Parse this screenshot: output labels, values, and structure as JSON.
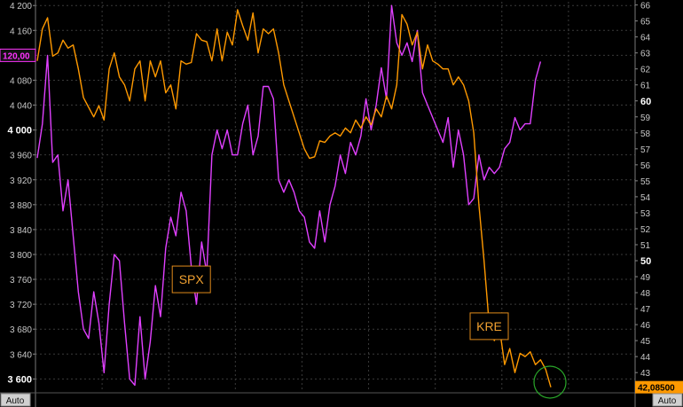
{
  "chart_data": {
    "type": "line",
    "left_axis": {
      "ticks": [
        "4 200",
        "4 160",
        "4 120",
        "4 080",
        "4 040",
        "4 000",
        "3 960",
        "3 920",
        "3 880",
        "3 840",
        "3 800",
        "3 760",
        "3 720",
        "3 680",
        "3 640",
        "3 600"
      ],
      "tick_values": [
        4200,
        4160,
        4120,
        4080,
        4040,
        4000,
        3960,
        3920,
        3880,
        3840,
        3800,
        3760,
        3720,
        3680,
        3640,
        3600
      ],
      "bold_ticks": [
        "4 000",
        "3 600"
      ],
      "range": [
        3582,
        4206
      ],
      "badge": {
        "text": "120,00",
        "value": 4120,
        "color": "#ff33ff"
      },
      "auto_label": "Auto"
    },
    "right_axis": {
      "ticks": [
        "66",
        "65",
        "64",
        "63",
        "62",
        "61",
        "60",
        "59",
        "58",
        "57",
        "56",
        "55",
        "54",
        "53",
        "52",
        "51",
        "50",
        "49",
        "48",
        "47",
        "46",
        "45",
        "44",
        "43"
      ],
      "tick_values": [
        66,
        65,
        64,
        63,
        62,
        61,
        60,
        59,
        58,
        57,
        56,
        55,
        54,
        53,
        52,
        51,
        50,
        49,
        48,
        47,
        46,
        45,
        44,
        43
      ],
      "bold_ticks": [
        "60",
        "50"
      ],
      "range": [
        41.9,
        66.2
      ],
      "badge": {
        "text": "42,08500",
        "value": 42.085,
        "color": "#ff9900"
      },
      "auto_label": "Auto"
    },
    "series": [
      {
        "name": "SPX",
        "color": "#e040ff",
        "axis": "left",
        "values": [
          3955,
          4010,
          4120,
          3948,
          3960,
          3870,
          3920,
          3830,
          3740,
          3680,
          3665,
          3740,
          3690,
          3610,
          3720,
          3800,
          3790,
          3690,
          3600,
          3590,
          3700,
          3600,
          3660,
          3750,
          3700,
          3810,
          3860,
          3830,
          3900,
          3870,
          3780,
          3720,
          3820,
          3770,
          3960,
          4000,
          3970,
          4000,
          3960,
          3960,
          4010,
          4040,
          3960,
          3990,
          4070,
          4070,
          4050,
          3920,
          3900,
          3920,
          3900,
          3870,
          3860,
          3820,
          3810,
          3870,
          3820,
          3880,
          3910,
          3960,
          3930,
          3980,
          3960,
          3990,
          4050,
          4000,
          4040,
          4100,
          4050,
          4200,
          4140,
          4120,
          4140,
          4110,
          4160,
          4060,
          4040,
          4020,
          4000,
          3980,
          4020,
          3940,
          4000,
          3960,
          3880,
          3890,
          3960,
          3920,
          3940,
          3930,
          3940,
          3970,
          3980,
          4020,
          4000,
          4010,
          4010,
          4080,
          4110
        ]
      },
      {
        "name": "KRE",
        "color": "#ff9900",
        "axis": "right",
        "values": [
          62.5,
          64.5,
          65.2,
          62.8,
          63.0,
          63.8,
          63.3,
          63.5,
          62.0,
          60.2,
          59.6,
          59.0,
          59.7,
          58.8,
          62.0,
          63.0,
          61.5,
          61.0,
          60.0,
          62.0,
          62.5,
          60.0,
          62.5,
          61.5,
          62.5,
          60.5,
          61.0,
          59.5,
          62.5,
          62.3,
          62.4,
          64.2,
          63.8,
          63.7,
          62.5,
          64.5,
          62.5,
          64.3,
          63.5,
          65.7,
          64.7,
          63.8,
          65.5,
          63.0,
          64.5,
          64.2,
          64.5,
          63.0,
          61.0,
          60.0,
          59.0,
          58.0,
          57.0,
          56.4,
          56.5,
          57.5,
          57.4,
          57.8,
          58.0,
          57.8,
          58.3,
          58.0,
          58.8,
          58.3,
          59.0,
          58.5,
          59.5,
          59.0,
          60.3,
          59.5,
          61.0,
          65.4,
          64.8,
          63.5,
          64.3,
          62.0,
          63.5,
          62.5,
          62.3,
          62.0,
          62.0,
          61.0,
          61.5,
          61.0,
          60.0,
          58.0,
          53.5,
          50.0,
          46.0,
          45.0,
          45.8,
          43.5,
          44.5,
          43.0,
          44.2,
          44.0,
          44.3,
          43.5,
          43.8,
          43.2,
          42.085
        ]
      }
    ],
    "annotations": [
      {
        "text": "SPX",
        "x_index": 30,
        "value": 3760,
        "axis": "left"
      },
      {
        "text": "KRE",
        "x_index": 88,
        "value": 45.9,
        "axis": "right"
      }
    ],
    "highlight_circle": {
      "x_index": 100,
      "value": 42.4,
      "axis": "right",
      "color": "#2aa82a"
    },
    "grid": true,
    "legend": "inline-labels"
  }
}
